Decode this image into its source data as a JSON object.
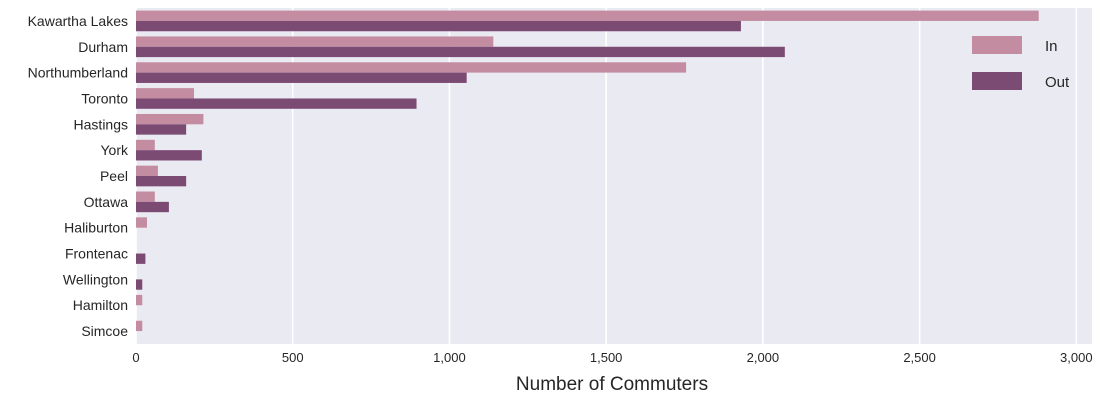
{
  "chart_data": {
    "type": "bar",
    "orientation": "horizontal",
    "title": "",
    "xlabel": "Number of Commuters",
    "ylabel": "",
    "xlim": [
      0,
      3050
    ],
    "xticks": [
      0,
      500,
      1000,
      1500,
      2000,
      2500,
      3000
    ],
    "xtick_labels": [
      "0",
      "500",
      "1,000",
      "1,500",
      "2,000",
      "2,500",
      "3,000"
    ],
    "grid": true,
    "legend_position": "top-right",
    "categories": [
      "Kawartha Lakes",
      "Durham",
      "Northumberland",
      "Toronto",
      "Hastings",
      "York",
      "Peel",
      "Ottawa",
      "Haliburton",
      "Frontenac",
      "Wellington",
      "Hamilton",
      "Simcoe"
    ],
    "series": [
      {
        "name": "In",
        "color": "#c48ca0",
        "values": [
          2880,
          1140,
          1755,
          185,
          215,
          60,
          70,
          60,
          35,
          0,
          0,
          20,
          20
        ]
      },
      {
        "name": "Out",
        "color": "#7c4b74",
        "values": [
          1930,
          2070,
          1055,
          895,
          160,
          210,
          160,
          105,
          0,
          30,
          20,
          0,
          0
        ]
      }
    ],
    "background_color": "#eaeaf2",
    "grid_color": "#ffffff"
  }
}
